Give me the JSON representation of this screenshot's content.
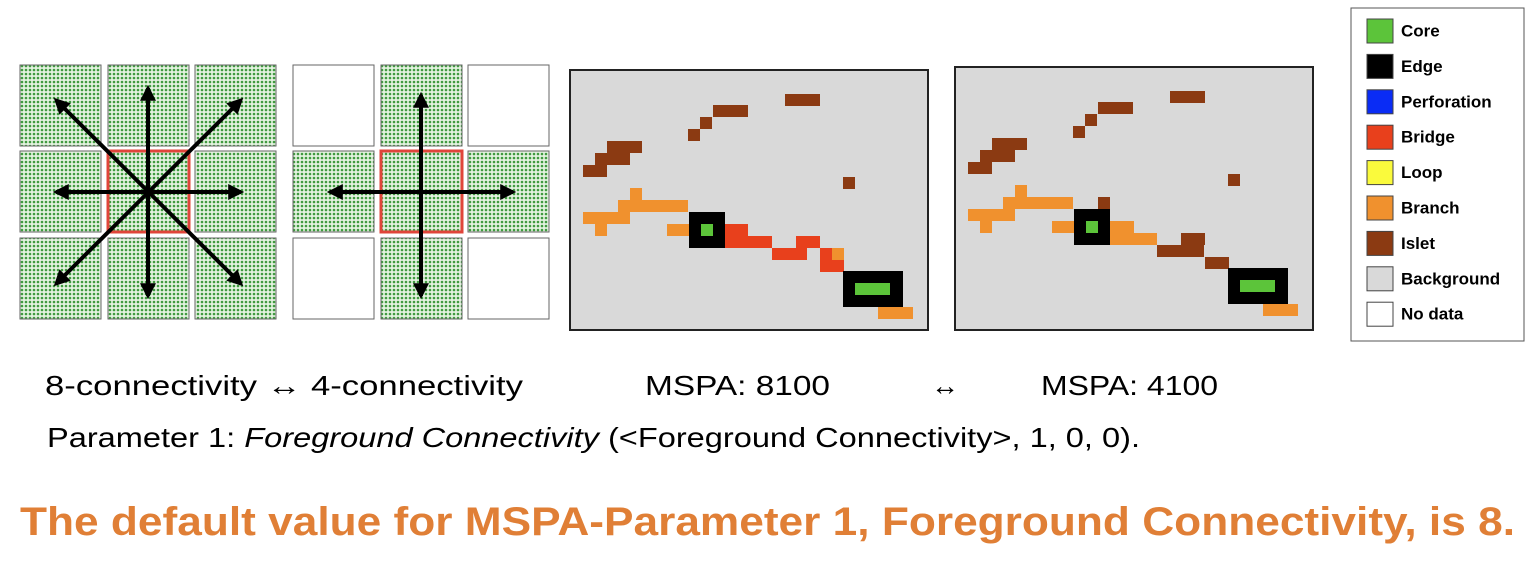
{
  "legend": {
    "items": [
      {
        "label": "Core",
        "color": "#5cc43a"
      },
      {
        "label": "Edge",
        "color": "#000000"
      },
      {
        "label": "Perforation",
        "color": "#0a2cf5"
      },
      {
        "label": "Bridge",
        "color": "#e8401c"
      },
      {
        "label": "Loop",
        "color": "#fafa3c"
      },
      {
        "label": "Branch",
        "color": "#f0912e"
      },
      {
        "label": "Islet",
        "color": "#8b3a12"
      },
      {
        "label": "Background",
        "color": "#d9d9d9"
      },
      {
        "label": "No data",
        "color": "#ffffff"
      }
    ]
  },
  "captions": {
    "connectivity": "8-connectivity ↔ 4-connectivity",
    "mspa_left": "MSPA:  8100",
    "arrow": "↔",
    "mspa_right": "MSPA: 4100"
  },
  "parameter": {
    "prefix": "Parameter 1: ",
    "name": "Foreground Connectivity",
    "suffix": " (<Foreground Connectivity>, 1, 0, 0)."
  },
  "conclusion": "The default value for MSPA-Parameter 1, Foreground Connectivity, is 8."
}
